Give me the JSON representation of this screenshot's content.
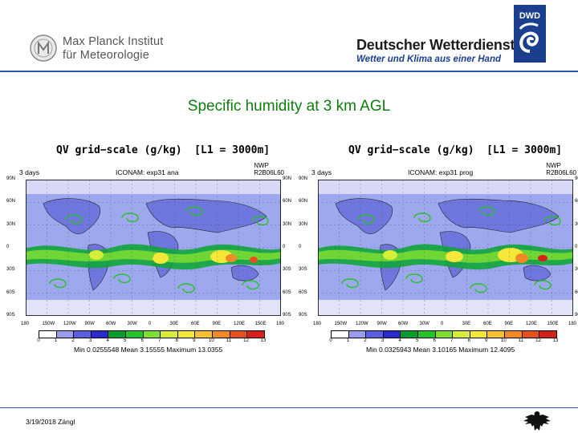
{
  "header": {
    "mpi_line1": "Max Planck Institut",
    "mpi_line2": "für Meteorologie",
    "dwd_name": "Deutscher Wetterdienst",
    "dwd_claim": "Wetter und Klima aus einer Hand",
    "dwd_logo_text": "DWD"
  },
  "slide_title": "Specific humidity at 3 km AGL",
  "panels": [
    {
      "title": "QV grid−scale (g/kg)  [L1 = 3000m]",
      "days": "3 days",
      "experiment": "ICONAM: exp31  ana",
      "nwp_line1": "NWP",
      "nwp_line2": "R2B06L60",
      "stats": "Min 0.0255548  Mean 3.15555  Maximum 13.0355"
    },
    {
      "title": "QV grid−scale (g/kg)  [L1 = 3000m]",
      "days": "3 days",
      "experiment": "ICONAM: exp31  prog",
      "nwp_line1": "NWP",
      "nwp_line2": "R2B06L60",
      "stats": "Min 0.0325943  Mean 3.10165  Maximum 12.4095"
    }
  ],
  "lat_labels": [
    "90N",
    "60N",
    "30N",
    "0",
    "30S",
    "60S",
    "90S"
  ],
  "lon_labels": [
    "180",
    "150W",
    "120W",
    "90W",
    "60W",
    "30W",
    "0",
    "30E",
    "60E",
    "90E",
    "120E",
    "150E",
    "180"
  ],
  "colorbar_ticks": [
    "0",
    "1",
    "2",
    "3",
    "4",
    "5",
    "6",
    "7",
    "8",
    "9",
    "10",
    "11",
    "12",
    "13"
  ],
  "colors": {
    "colorbar": [
      "#ffffff",
      "#9a9cf0",
      "#5a5fe0",
      "#2a2ad0",
      "#0a9a30",
      "#25c22a",
      "#7ede32",
      "#d6ee38",
      "#f6e838",
      "#f3c22e",
      "#ef8a26",
      "#e5501e",
      "#d8201a"
    ],
    "ocean": "#9ea8ee",
    "land": "#6f76dd",
    "moist_band": "#11a63a",
    "header_rule": "#2a58a8",
    "title_green": "#0d7d0d"
  },
  "footer": {
    "date_author": "3/19/2018  Zängl"
  }
}
